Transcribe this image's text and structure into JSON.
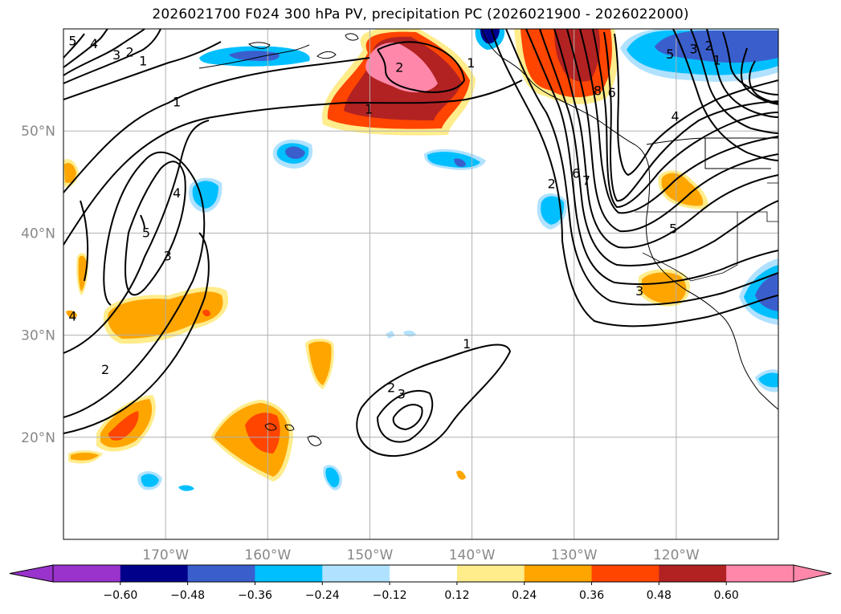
{
  "title": "2026021700 F024 300 hPa PV, precipitation PC (2026021900 - 2026022000)",
  "map": {
    "lon_range": [
      -180,
      -110
    ],
    "lat_range": [
      10,
      60
    ],
    "lat_ticks": [
      {
        "lat": 50,
        "label": "50°N"
      },
      {
        "lat": 40,
        "label": "40°N"
      },
      {
        "lat": 30,
        "label": "30°N"
      },
      {
        "lat": 20,
        "label": "20°N"
      }
    ],
    "lon_ticks": [
      {
        "lon": -170,
        "label": "170°W"
      },
      {
        "lon": -160,
        "label": "160°W"
      },
      {
        "lon": -150,
        "label": "150°W"
      },
      {
        "lon": -140,
        "label": "140°W"
      },
      {
        "lon": -130,
        "label": "130°W"
      },
      {
        "lon": -120,
        "label": "120°W"
      }
    ],
    "grid": true
  },
  "colorbar": {
    "levels": [
      "-0.60",
      "-0.48",
      "-0.36",
      "-0.24",
      "-0.12",
      "0.12",
      "0.24",
      "0.36",
      "0.48",
      "0.60"
    ],
    "colors": [
      "#9933cc",
      "#00008b",
      "#3a5fcd",
      "#00bfff",
      "#b0e2ff",
      "#ffffff",
      "#ffec8b",
      "#ffa500",
      "#ff4500",
      "#b22222",
      "#ff88aa"
    ],
    "extend": "both"
  },
  "contour_labels": [
    {
      "text": "5",
      "lon": -179.1,
      "lat": 58.8
    },
    {
      "text": "4",
      "lon": -177,
      "lat": 58.5
    },
    {
      "text": "3",
      "lon": -174.8,
      "lat": 57.4
    },
    {
      "text": "2",
      "lon": -173.5,
      "lat": 57.7
    },
    {
      "text": "1",
      "lon": -172.2,
      "lat": 56.8
    },
    {
      "text": "1",
      "lon": -168.9,
      "lat": 52.8
    },
    {
      "text": "4",
      "lon": -168.9,
      "lat": 43.9
    },
    {
      "text": "5",
      "lon": -171.9,
      "lat": 40.0
    },
    {
      "text": "3",
      "lon": -169.8,
      "lat": 37.7
    },
    {
      "text": "2",
      "lon": -175.9,
      "lat": 26.6
    },
    {
      "text": "4",
      "lon": -179.1,
      "lat": 31.8
    },
    {
      "text": "2",
      "lon": -147.1,
      "lat": 56.2
    },
    {
      "text": "1",
      "lon": -150.1,
      "lat": 52.1
    },
    {
      "text": "1",
      "lon": -140.1,
      "lat": 56.6
    },
    {
      "text": "8",
      "lon": -127.7,
      "lat": 53.9
    },
    {
      "text": "6",
      "lon": -126.3,
      "lat": 53.7
    },
    {
      "text": "6",
      "lon": -129.8,
      "lat": 45.8
    },
    {
      "text": "2",
      "lon": -132.2,
      "lat": 44.8
    },
    {
      "text": "7",
      "lon": -128.8,
      "lat": 45.1
    },
    {
      "text": "5",
      "lon": -120.6,
      "lat": 57.5
    },
    {
      "text": "3",
      "lon": -118.3,
      "lat": 58.0
    },
    {
      "text": "2",
      "lon": -116.8,
      "lat": 58.3
    },
    {
      "text": "1",
      "lon": -116.0,
      "lat": 56.9
    },
    {
      "text": "4",
      "lon": -120.1,
      "lat": 51.4
    },
    {
      "text": "5",
      "lon": -120.3,
      "lat": 40.4
    },
    {
      "text": "3",
      "lon": -123.6,
      "lat": 34.3
    },
    {
      "text": "1",
      "lon": -140.5,
      "lat": 29.1
    },
    {
      "text": "2",
      "lon": -147.9,
      "lat": 24.8
    },
    {
      "text": "3",
      "lon": -146.9,
      "lat": 24.2
    }
  ]
}
